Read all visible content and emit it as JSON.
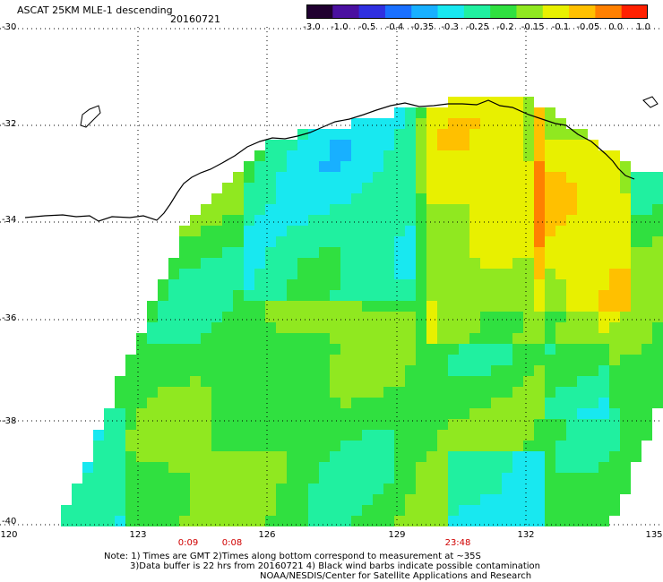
{
  "title": {
    "main": "ASCAT 25KM MLE-1 descending",
    "date": "20160721"
  },
  "colorbar": {
    "labels": [
      "-3.0",
      "-1.0",
      "-0.5",
      "-0.4",
      "-0.35",
      "-0.3",
      "-0.25",
      "-0.2",
      "-0.15",
      "-0.1",
      "-0.05",
      "0.0",
      "1.0"
    ],
    "colors": [
      "#200030",
      "#4a10a0",
      "#3030e0",
      "#1a70ff",
      "#18b0ff",
      "#18e8f0",
      "#20f0a0",
      "#30e040",
      "#90e820",
      "#e8f000",
      "#ffc000",
      "#ff8000",
      "#ff2000"
    ]
  },
  "map": {
    "lat_labels": [
      "-30",
      "-32",
      "-34",
      "-36",
      "-38",
      "-40"
    ],
    "lon_labels": [
      "120",
      "123",
      "126",
      "129",
      "132",
      "135"
    ],
    "time_labels": [
      "0:09",
      "0:08",
      "23:48"
    ],
    "time_color": "#d00000"
  },
  "footer": {
    "line1": "Note: 1) Times are GMT 2)Times along bottom correspond to measurement at ~35S",
    "line2": "3)Data buffer is 22 hrs from 20160721 4) Black wind barbs indicate possible contamination",
    "line3": "NOAA/NESDIS/Center for Satellite Applications and Research"
  }
}
